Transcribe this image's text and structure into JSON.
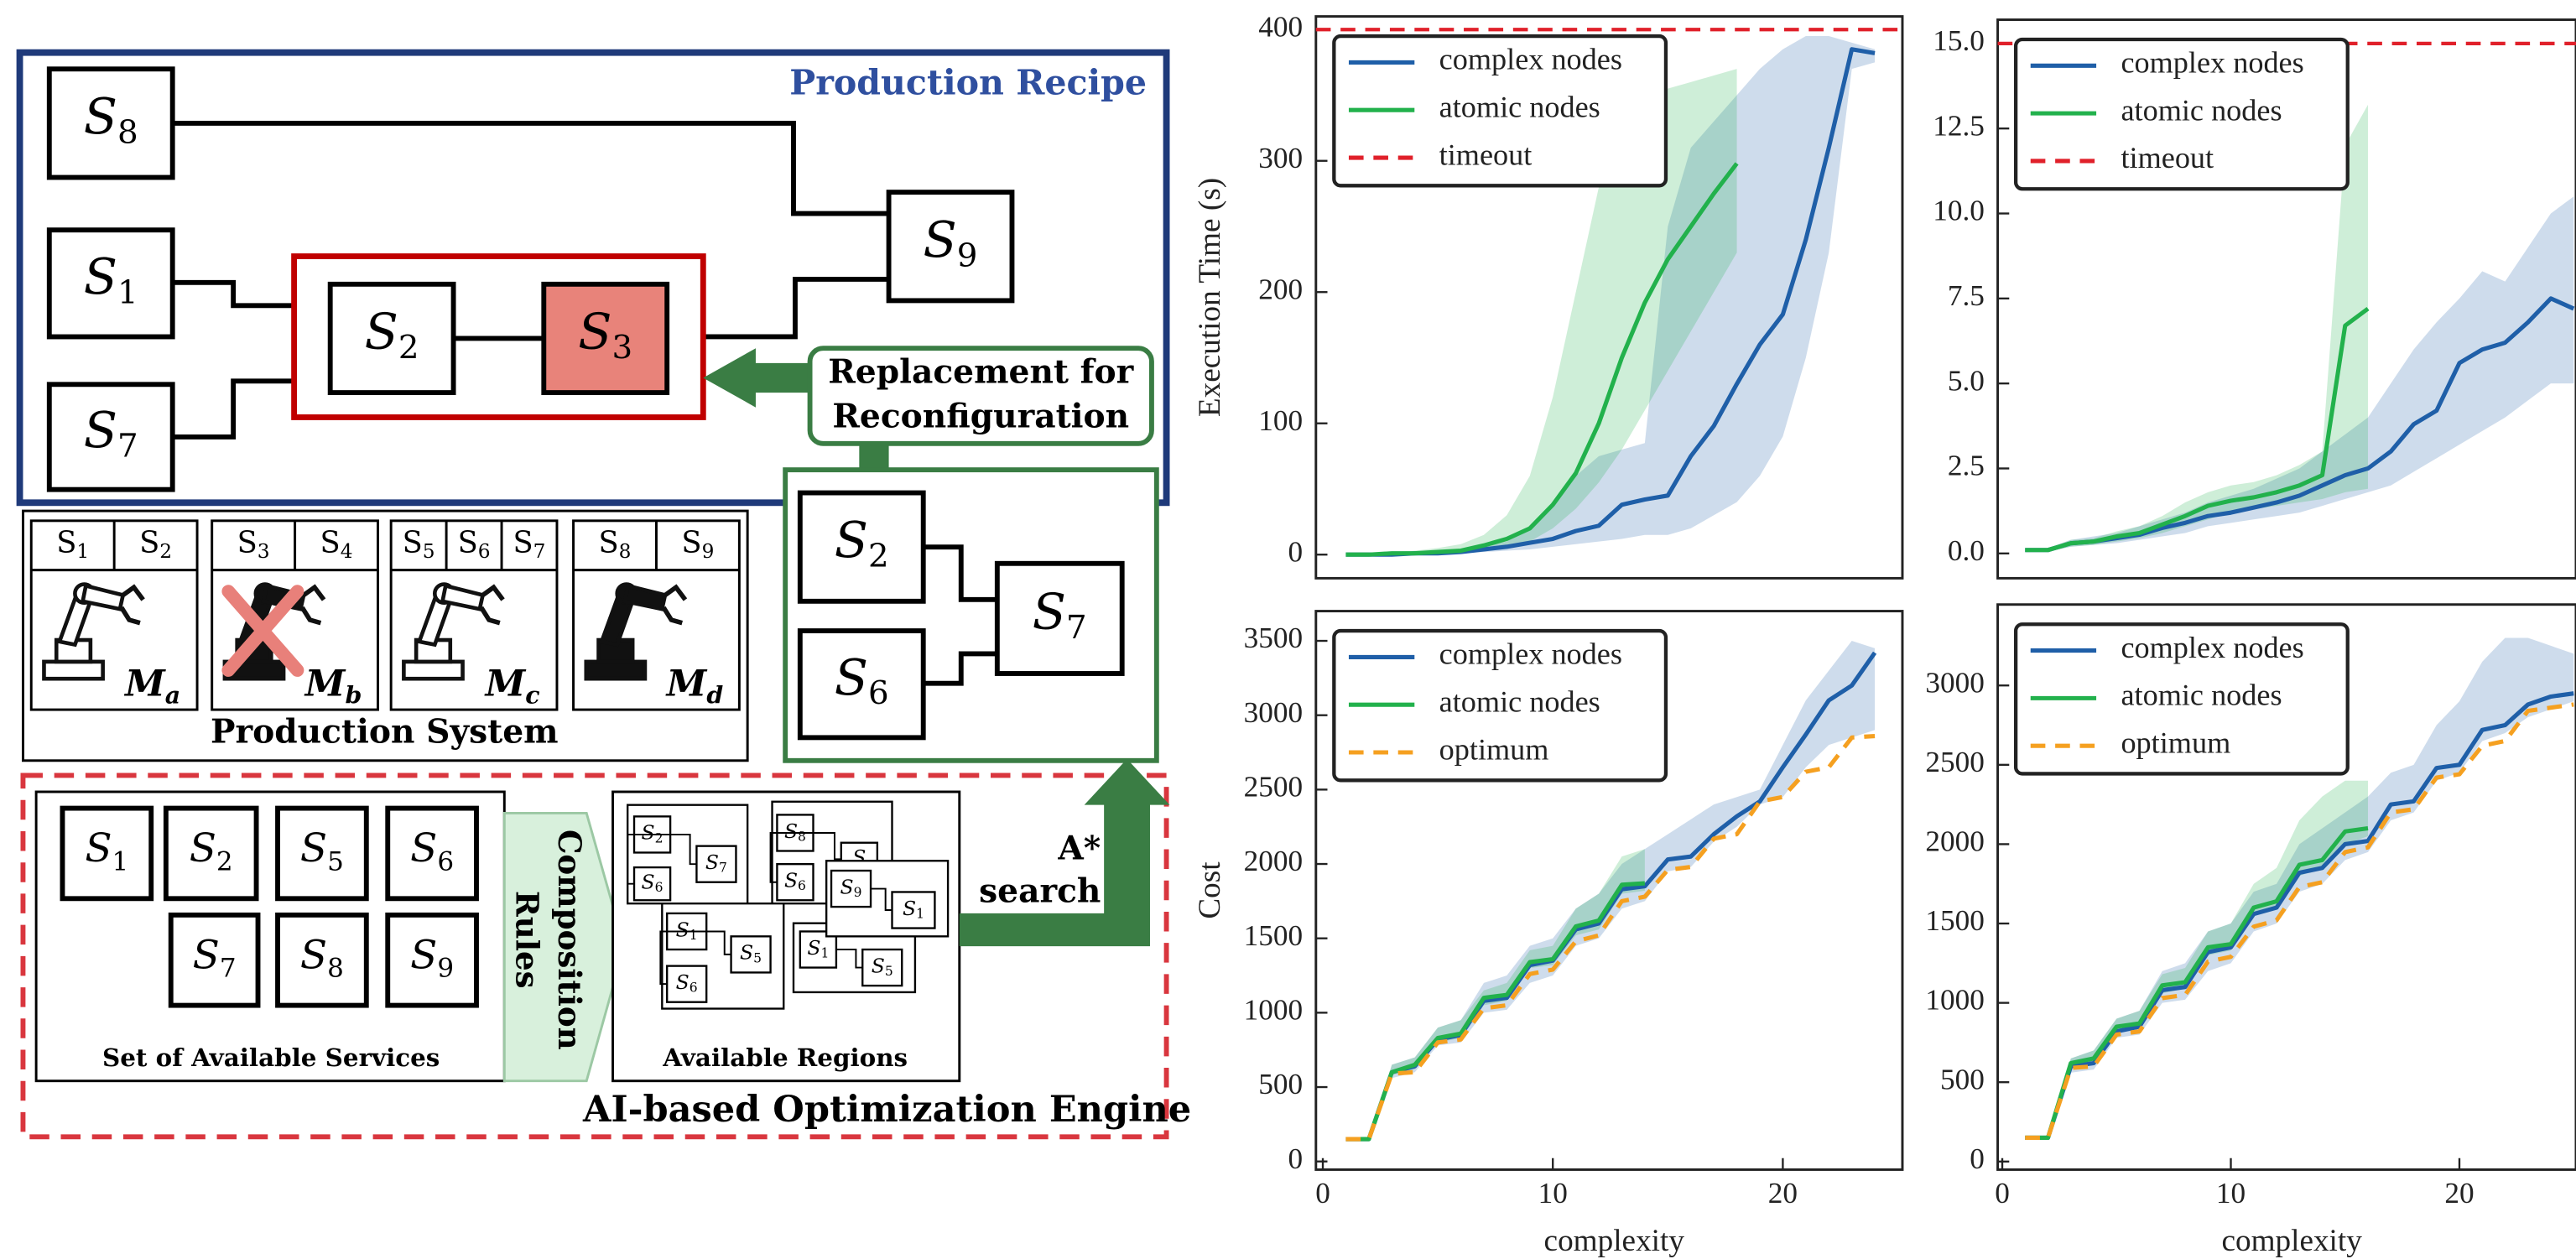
{
  "diagram": {
    "recipe": {
      "title": "Production Recipe",
      "nodes": [
        "S8",
        "S1",
        "S7",
        "S2",
        "S3",
        "S9"
      ]
    },
    "replacement": {
      "label": [
        "Replacement for",
        "Reconfiguration"
      ],
      "nodes": [
        "S2",
        "S6",
        "S7"
      ]
    },
    "production_system": {
      "title": "Production System",
      "machines": [
        {
          "services": [
            "S1",
            "S2"
          ],
          "label": "Ma"
        },
        {
          "services": [
            "S3",
            "S4"
          ],
          "label": "Mb"
        },
        {
          "services": [
            "S5",
            "S6",
            "S7"
          ],
          "label": "Mc"
        },
        {
          "services": [
            "S8",
            "S9"
          ],
          "label": "Md"
        }
      ]
    },
    "engine": {
      "title": "AI-based Optimization Engine",
      "services_title": "Set of Available Services",
      "services": [
        "S1",
        "S2",
        "S5",
        "S6",
        "S7",
        "S8",
        "S9"
      ],
      "rules": [
        "Composition",
        "Rules"
      ],
      "regions_title": "Available Regions",
      "regions": [
        [
          "S2",
          "S7",
          "S6"
        ],
        [
          "S8",
          "S",
          "S6"
        ],
        [
          "S1",
          "S5",
          "S6"
        ],
        [
          "S1",
          "S5"
        ],
        [
          "S9",
          "S1"
        ]
      ],
      "search": [
        "A*",
        "search"
      ]
    }
  },
  "chart_data": [
    {
      "type": "line",
      "ylabel": "Execution Time (s)",
      "x": [
        1,
        2,
        3,
        4,
        5,
        6,
        7,
        8,
        9,
        10,
        11,
        12,
        13,
        14,
        15,
        16,
        17,
        18,
        19,
        20,
        21,
        22,
        23,
        24
      ],
      "xlim": [
        -0.3,
        25.2
      ],
      "ylim": [
        -18,
        410
      ],
      "yticks": [
        0,
        100,
        200,
        300,
        400
      ],
      "legend": "upper left",
      "series": [
        {
          "name": "complex nodes",
          "color": "#1f5fa8",
          "values": [
            0,
            0,
            0,
            1,
            1,
            2,
            4,
            6,
            9,
            12,
            18,
            22,
            38,
            42,
            45,
            75,
            98,
            130,
            160,
            183,
            240,
            310,
            385,
            382
          ],
          "lower": [
            0,
            0,
            0,
            0,
            1,
            1,
            2,
            3,
            4,
            6,
            8,
            10,
            12,
            15,
            15,
            20,
            30,
            40,
            60,
            90,
            150,
            230,
            370,
            375
          ],
          "upper": [
            0,
            0,
            1,
            2,
            3,
            4,
            6,
            10,
            20,
            40,
            60,
            75,
            80,
            85,
            250,
            310,
            330,
            350,
            370,
            385,
            395,
            395,
            390,
            385
          ]
        },
        {
          "name": "atomic nodes",
          "color": "#22b14c",
          "values": [
            0,
            0,
            1,
            1,
            2,
            3,
            7,
            12,
            20,
            38,
            62,
            100,
            150,
            192,
            225,
            250,
            275,
            298,
            null,
            null,
            null,
            null,
            null,
            null
          ],
          "lower": [
            0,
            0,
            0,
            1,
            1,
            2,
            4,
            6,
            10,
            20,
            35,
            55,
            80,
            110,
            140,
            170,
            200,
            230,
            null,
            null,
            null,
            null,
            null,
            null
          ],
          "upper": [
            0,
            1,
            2,
            3,
            5,
            8,
            15,
            30,
            60,
            120,
            200,
            280,
            330,
            345,
            355,
            360,
            365,
            370,
            null,
            null,
            null,
            null,
            null,
            null
          ]
        }
      ],
      "reference": {
        "name": "timeout",
        "value": 400,
        "color": "#e0202a"
      }
    },
    {
      "type": "line",
      "x": [
        1,
        2,
        3,
        4,
        5,
        6,
        7,
        8,
        9,
        10,
        11,
        12,
        13,
        14,
        15,
        16,
        17,
        18,
        19,
        20,
        21,
        22,
        23,
        24,
        25
      ],
      "xlim": [
        -0.2,
        25.1
      ],
      "ylim": [
        -0.73,
        15.7
      ],
      "yticks": [
        {
          "value": 0,
          "label": "0.0"
        },
        2.5,
        {
          "value": 5,
          "label": "5.0"
        },
        7.5,
        {
          "value": 10,
          "label": "10.0"
        },
        12.5,
        {
          "value": 15,
          "label": "15.0"
        }
      ],
      "legend": "upper left",
      "series": [
        {
          "name": "complex nodes",
          "color": "#1f5fa8",
          "values": [
            0.1,
            0.1,
            0.3,
            0.35,
            0.45,
            0.55,
            0.75,
            0.9,
            1.1,
            1.2,
            1.35,
            1.5,
            1.7,
            2.0,
            2.3,
            2.5,
            3.0,
            3.8,
            4.2,
            5.6,
            6.0,
            6.2,
            6.8,
            7.5,
            7.2
          ],
          "lower": [
            0.05,
            0.05,
            0.2,
            0.25,
            0.3,
            0.4,
            0.5,
            0.6,
            0.8,
            0.9,
            1.0,
            1.1,
            1.2,
            1.4,
            1.6,
            1.8,
            2.0,
            2.4,
            2.8,
            3.2,
            3.6,
            4.0,
            4.5,
            5.0,
            5.0
          ],
          "upper": [
            0.15,
            0.15,
            0.4,
            0.5,
            0.6,
            0.8,
            1.0,
            1.2,
            1.5,
            1.7,
            1.9,
            2.2,
            2.5,
            3.0,
            3.5,
            4.0,
            5.0,
            6.0,
            6.8,
            7.5,
            8.3,
            8.0,
            9.0,
            10.0,
            10.5
          ]
        },
        {
          "name": "atomic nodes",
          "color": "#22b14c",
          "values": [
            0.1,
            0.1,
            0.3,
            0.35,
            0.5,
            0.6,
            0.85,
            1.1,
            1.4,
            1.55,
            1.65,
            1.8,
            2.0,
            2.3,
            6.7,
            7.2,
            null,
            null,
            null,
            null,
            null,
            null,
            null,
            null,
            null
          ],
          "lower": [
            0.05,
            0.05,
            0.2,
            0.25,
            0.35,
            0.45,
            0.6,
            0.8,
            1.0,
            1.2,
            1.3,
            1.4,
            1.5,
            1.6,
            1.8,
            1.9,
            null,
            null,
            null,
            null,
            null,
            null,
            null,
            null,
            null
          ],
          "upper": [
            0.15,
            0.15,
            0.4,
            0.45,
            0.65,
            0.8,
            1.1,
            1.5,
            1.8,
            2.0,
            2.1,
            2.3,
            2.6,
            3.0,
            12.0,
            13.2,
            null,
            null,
            null,
            null,
            null,
            null,
            null,
            null,
            null
          ]
        }
      ],
      "reference": {
        "name": "timeout",
        "value": 15,
        "color": "#e0202a"
      }
    },
    {
      "type": "line",
      "ylabel": "Cost",
      "xlabel": "complexity",
      "x": [
        1,
        2,
        3,
        4,
        5,
        6,
        7,
        8,
        9,
        10,
        11,
        12,
        13,
        14,
        15,
        16,
        17,
        18,
        19,
        20,
        21,
        22,
        23,
        24
      ],
      "xlim": [
        -0.3,
        25.2
      ],
      "ylim": [
        -55,
        3700
      ],
      "xticks": [
        0,
        10,
        20
      ],
      "yticks": [
        0,
        500,
        1000,
        1500,
        2000,
        2500,
        3000,
        3500
      ],
      "legend": "upper left",
      "series": [
        {
          "name": "complex nodes",
          "color": "#1f5fa8",
          "values": [
            150,
            150,
            600,
            640,
            820,
            850,
            1080,
            1100,
            1320,
            1350,
            1560,
            1600,
            1830,
            1850,
            2030,
            2050,
            2200,
            2320,
            2420,
            2650,
            2870,
            3100,
            3200,
            3420
          ],
          "lower": [
            150,
            150,
            560,
            600,
            780,
            800,
            1000,
            1020,
            1200,
            1250,
            1450,
            1500,
            1700,
            1750,
            1950,
            1980,
            2150,
            2250,
            2400,
            2450,
            2650,
            2800,
            2850,
            2900
          ],
          "upper": [
            150,
            150,
            650,
            700,
            900,
            950,
            1200,
            1250,
            1450,
            1500,
            1700,
            1800,
            2000,
            2100,
            2200,
            2300,
            2400,
            2450,
            2500,
            2800,
            3100,
            3300,
            3500,
            3450
          ]
        },
        {
          "name": "atomic nodes",
          "color": "#22b14c",
          "values": [
            150,
            150,
            600,
            650,
            830,
            860,
            1100,
            1120,
            1340,
            1360,
            1580,
            1620,
            1860,
            1870,
            null,
            null,
            null,
            null,
            null,
            null,
            null,
            null,
            null,
            null
          ],
          "lower": [
            150,
            150,
            580,
            620,
            800,
            830,
            1050,
            1080,
            1300,
            1320,
            1520,
            1560,
            1800,
            1820,
            null,
            null,
            null,
            null,
            null,
            null,
            null,
            null,
            null,
            null
          ],
          "upper": [
            150,
            150,
            650,
            700,
            900,
            950,
            1150,
            1200,
            1420,
            1450,
            1700,
            1800,
            2050,
            2100,
            null,
            null,
            null,
            null,
            null,
            null,
            null,
            null,
            null,
            null
          ]
        },
        {
          "name": "optimum",
          "color": "#f5a020",
          "dashed": true,
          "values": [
            150,
            150,
            590,
            600,
            800,
            820,
            1030,
            1050,
            1260,
            1290,
            1480,
            1520,
            1750,
            1780,
            1960,
            1980,
            2170,
            2200,
            2420,
            2450,
            2620,
            2650,
            2850,
            2860
          ]
        }
      ]
    },
    {
      "type": "line",
      "xlabel": "complexity",
      "x": [
        1,
        2,
        3,
        4,
        5,
        6,
        7,
        8,
        9,
        10,
        11,
        12,
        13,
        14,
        15,
        16,
        17,
        18,
        19,
        20,
        21,
        22,
        23,
        24,
        25
      ],
      "xlim": [
        -0.2,
        25.1
      ],
      "ylim": [
        -51,
        3510
      ],
      "xticks": [
        0,
        10,
        20
      ],
      "yticks": [
        0,
        500,
        1000,
        1500,
        2000,
        2500,
        3000
      ],
      "legend": "upper left",
      "series": [
        {
          "name": "complex nodes",
          "color": "#1f5fa8",
          "values": [
            150,
            150,
            600,
            620,
            820,
            850,
            1080,
            1100,
            1320,
            1350,
            1560,
            1600,
            1820,
            1850,
            2000,
            2020,
            2250,
            2270,
            2480,
            2500,
            2720,
            2750,
            2880,
            2930,
            2950
          ],
          "lower": [
            150,
            150,
            560,
            580,
            780,
            800,
            1000,
            1020,
            1200,
            1250,
            1450,
            1500,
            1700,
            1750,
            1900,
            1950,
            2150,
            2200,
            2400,
            2450,
            2650,
            2700,
            2800,
            2850,
            2900
          ],
          "upper": [
            150,
            150,
            650,
            700,
            900,
            950,
            1200,
            1250,
            1450,
            1500,
            1700,
            1750,
            2000,
            2100,
            2200,
            2300,
            2450,
            2500,
            2750,
            2900,
            3150,
            3300,
            3300,
            3250,
            3200
          ]
        },
        {
          "name": "atomic nodes",
          "color": "#22b14c",
          "values": [
            150,
            150,
            620,
            650,
            850,
            870,
            1110,
            1130,
            1350,
            1370,
            1600,
            1640,
            1870,
            1900,
            2080,
            2100,
            null,
            null,
            null,
            null,
            null,
            null,
            null,
            null,
            null
          ],
          "lower": [
            150,
            150,
            590,
            620,
            820,
            840,
            1060,
            1090,
            1300,
            1330,
            1550,
            1590,
            1800,
            1850,
            2000,
            2050,
            null,
            null,
            null,
            null,
            null,
            null,
            null,
            null,
            null
          ],
          "upper": [
            150,
            150,
            650,
            700,
            900,
            950,
            1180,
            1220,
            1450,
            1500,
            1750,
            1850,
            2150,
            2300,
            2400,
            2400,
            null,
            null,
            null,
            null,
            null,
            null,
            null,
            null,
            null
          ]
        },
        {
          "name": "optimum",
          "color": "#f5a020",
          "dashed": true,
          "values": [
            150,
            150,
            590,
            600,
            800,
            820,
            1030,
            1050,
            1260,
            1290,
            1480,
            1520,
            1730,
            1760,
            1950,
            1980,
            2200,
            2220,
            2420,
            2440,
            2620,
            2650,
            2840,
            2860,
            2880
          ]
        }
      ]
    }
  ]
}
